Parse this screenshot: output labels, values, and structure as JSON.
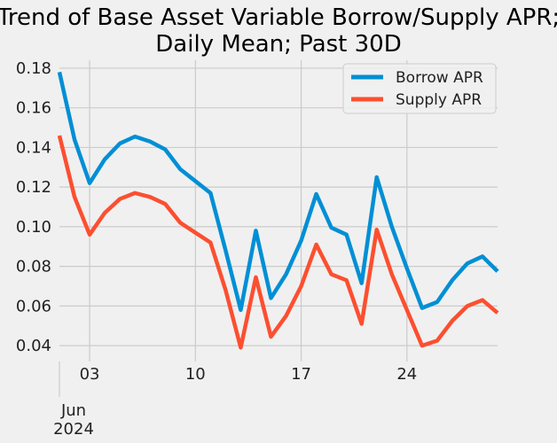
{
  "chart_data": {
    "type": "line",
    "title_lines": [
      "Trend of Base Asset Variable Borrow/Supply APR;",
      "Daily Mean; Past 30D"
    ],
    "x_start_label": "2024-06-01",
    "x": [
      "2024-06-01",
      "2024-06-02",
      "2024-06-03",
      "2024-06-04",
      "2024-06-05",
      "2024-06-06",
      "2024-06-07",
      "2024-06-08",
      "2024-06-09",
      "2024-06-10",
      "2024-06-11",
      "2024-06-12",
      "2024-06-13",
      "2024-06-14",
      "2024-06-15",
      "2024-06-16",
      "2024-06-17",
      "2024-06-18",
      "2024-06-19",
      "2024-06-20",
      "2024-06-21",
      "2024-06-22",
      "2024-06-23",
      "2024-06-24",
      "2024-06-25",
      "2024-06-26",
      "2024-06-27",
      "2024-06-28",
      "2024-06-29",
      "2024-06-30"
    ],
    "x_ticks": [
      {
        "date": "2024-06-03",
        "label": "03"
      },
      {
        "date": "2024-06-10",
        "label": "10"
      },
      {
        "date": "2024-06-17",
        "label": "17"
      },
      {
        "date": "2024-06-24",
        "label": "24"
      }
    ],
    "x_month_label": "Jun",
    "x_year_label": "2024",
    "ylim": [
      0.032,
      0.184
    ],
    "y_ticks": [
      0.04,
      0.06,
      0.08,
      0.1,
      0.12,
      0.14,
      0.16,
      0.18
    ],
    "y_tick_labels": [
      "0.04",
      "0.06",
      "0.08",
      "0.10",
      "0.12",
      "0.14",
      "0.16",
      "0.18"
    ],
    "grid": true,
    "legend_position": "top-right",
    "series": [
      {
        "name": "Borrow APR",
        "color": "#008fd5",
        "values": [
          0.178,
          0.144,
          0.122,
          0.134,
          0.142,
          0.1455,
          0.143,
          0.139,
          0.129,
          0.123,
          0.117,
          0.088,
          0.058,
          0.098,
          0.064,
          0.076,
          0.093,
          0.1165,
          0.0995,
          0.096,
          0.0715,
          0.125,
          0.1,
          0.079,
          0.059,
          0.062,
          0.073,
          0.0815,
          0.085,
          0.0775
        ]
      },
      {
        "name": "Supply APR",
        "color": "#fc4f30",
        "values": [
          0.146,
          0.115,
          0.096,
          0.107,
          0.114,
          0.117,
          0.115,
          0.1115,
          0.102,
          0.097,
          0.092,
          0.068,
          0.039,
          0.0745,
          0.0445,
          0.055,
          0.07,
          0.091,
          0.076,
          0.073,
          0.051,
          0.0985,
          0.076,
          0.058,
          0.04,
          0.0425,
          0.0525,
          0.06,
          0.063,
          0.0565
        ]
      }
    ]
  }
}
